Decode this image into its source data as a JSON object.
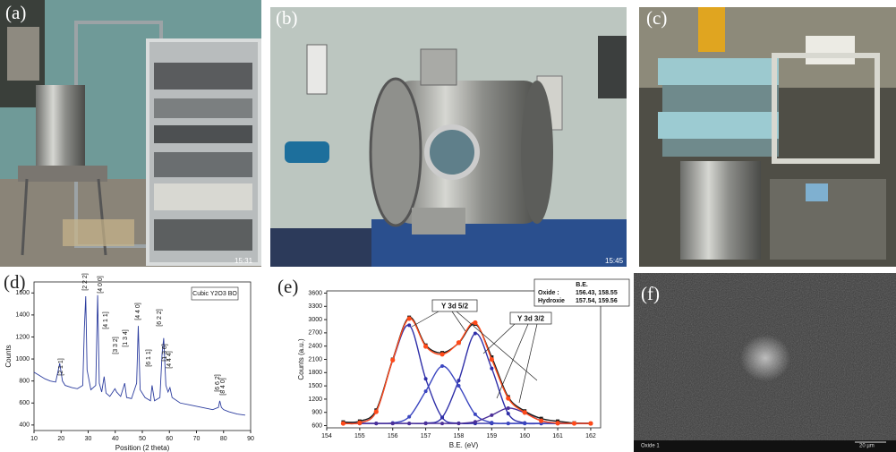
{
  "photos": {
    "a": {
      "label": "(a)",
      "timestamp": "15:31"
    },
    "b": {
      "label": "(b)",
      "timestamp": "15:45"
    },
    "c": {
      "label": "(c)"
    },
    "f": {
      "label": "(f)",
      "caption": "Oxide 1",
      "scale": "20 µm"
    }
  },
  "chart_data": [
    {
      "type": "line",
      "label": "(d)",
      "xlabel": "Position (2 theta)",
      "ylabel": "Counts",
      "legend_text": "Cubic Y2O3 BO",
      "annotations": [
        "[2 1 1]",
        "[2 2 2]",
        "[4 0 0]",
        "[4 1 1]",
        "[3 3 2]",
        "[1 3 4]",
        "[4 4 0]",
        "[6 1 1]",
        "[6 2 2]",
        "[1 3 6]",
        "[4 4 4]",
        "[6 6 2]",
        "[8 4 0]"
      ],
      "xlim": [
        10,
        90
      ],
      "ylim": [
        350,
        1700
      ],
      "xticks": [
        10,
        20,
        30,
        40,
        50,
        60,
        70,
        80,
        90
      ],
      "yticks": [
        400,
        600,
        800,
        1000,
        1200,
        1400,
        1600
      ],
      "x": [
        10,
        12,
        14,
        16,
        18,
        19.5,
        20.5,
        21.5,
        24,
        26,
        28,
        28.6,
        29.1,
        29.6,
        31,
        32.8,
        33.5,
        34.1,
        35,
        35.9,
        36.6,
        38,
        39.9,
        40.5,
        42,
        43.5,
        44.2,
        46,
        47.9,
        48.5,
        49.2,
        51,
        53,
        53.6,
        54.5,
        56.5,
        57.3,
        57.9,
        58.7,
        59.5,
        60.2,
        61,
        64,
        68,
        72,
        76,
        78.1,
        78.6,
        79.2,
        80,
        82,
        85,
        88
      ],
      "series": [
        {
          "color": "#2b3c9e",
          "values": [
            880,
            850,
            820,
            800,
            790,
            960,
            800,
            760,
            740,
            730,
            760,
            1280,
            1570,
            900,
            720,
            760,
            1580,
            780,
            700,
            840,
            690,
            660,
            730,
            700,
            660,
            780,
            650,
            640,
            780,
            1300,
            720,
            650,
            620,
            760,
            620,
            650,
            1050,
            1190,
            760,
            700,
            740,
            650,
            600,
            580,
            560,
            540,
            560,
            620,
            560,
            540,
            520,
            500,
            490
          ]
        }
      ]
    },
    {
      "type": "line",
      "label": "(e)",
      "xlabel": "B.E. (eV)",
      "ylabel": "Counts (a.u.)",
      "legend_title": "B.E.",
      "legend_rows": [
        [
          "Oxide :",
          "156.43, 158.55"
        ],
        [
          "Hydroxie",
          "157.54, 159.56"
        ]
      ],
      "annotations": [
        "Y 3d 5/2",
        "Y 3d 3/2"
      ],
      "xlim": [
        154,
        162.3
      ],
      "ylim": [
        550,
        3650
      ],
      "xticks": [
        154,
        155,
        156,
        157,
        158,
        159,
        160,
        161,
        162
      ],
      "yticks": [
        600,
        900,
        1200,
        1500,
        1800,
        2100,
        2400,
        2700,
        3000,
        3300,
        3600
      ],
      "x": [
        154.5,
        155,
        155.5,
        156,
        156.5,
        157,
        157.5,
        158,
        158.5,
        159,
        159.5,
        160,
        160.5,
        161,
        161.5,
        162
      ],
      "series": [
        {
          "color": "#2f2fa8",
          "values": [
            650,
            664,
            915,
            2074,
            2873,
            1660,
            783,
            655,
            650,
            650,
            650,
            650,
            650,
            650,
            650,
            650
          ]
        },
        {
          "color": "#2f2fa8",
          "values": [
            650,
            650,
            650,
            650,
            650,
            656,
            785,
            1622,
            2688,
            1894,
            871,
            661,
            650,
            650,
            650,
            650
          ]
        },
        {
          "color": "#3b46c0",
          "values": [
            650,
            650,
            650,
            661,
            800,
            1378,
            1947,
            1503,
            856,
            668,
            650,
            650,
            650,
            650,
            650,
            650
          ]
        },
        {
          "color": "#4b2f98",
          "values": [
            650,
            650,
            650,
            650,
            650,
            650,
            650,
            650,
            687,
            836,
            997,
            888,
            710,
            656,
            650,
            650
          ]
        },
        {
          "color": "#1a1a1a",
          "values": [
            680,
            700,
            950,
            2100,
            3050,
            2420,
            2250,
            2470,
            2900,
            2150,
            1250,
            930,
            760,
            700,
            660,
            650
          ]
        },
        {
          "color": "#ff4a1a",
          "values": [
            650,
            664,
            915,
            2085,
            3023,
            2394,
            2215,
            2480,
            2931,
            2098,
            1218,
            899,
            710,
            656,
            650,
            650
          ]
        }
      ]
    }
  ]
}
